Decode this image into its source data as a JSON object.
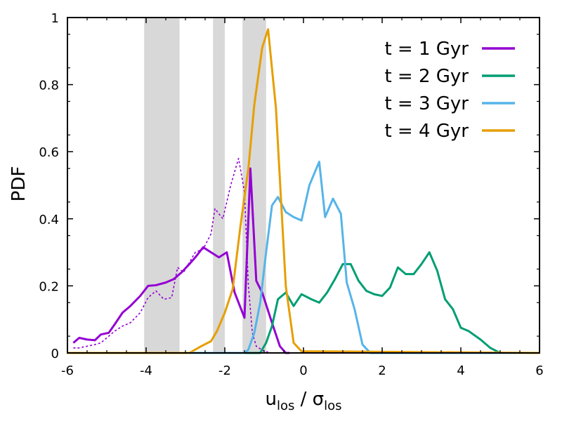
{
  "chart_data": {
    "type": "line",
    "xlabel": "u_los / σ_los",
    "xlabel_parts": {
      "u": "u",
      "u_sub": "los",
      "sep": " / ",
      "sigma": "σ",
      "sigma_sub": "los"
    },
    "ylabel": "PDF",
    "xlim": [
      -6,
      6
    ],
    "ylim": [
      0,
      1
    ],
    "x_ticks": [
      -6,
      -4,
      -2,
      0,
      2,
      4,
      6
    ],
    "y_ticks": [
      0,
      0.2,
      0.4,
      0.6,
      0.8,
      1
    ],
    "x_tick_labels": [
      "-6",
      "-4",
      "-2",
      "0",
      "2",
      "4",
      "6"
    ],
    "y_tick_labels": [
      "0",
      "0.2",
      "0.4",
      "0.6",
      "0.8",
      "1"
    ],
    "legend_position": "top-right",
    "shaded_bands": [
      {
        "x0": -4.05,
        "x1": -3.15
      },
      {
        "x0": -2.3,
        "x1": -2.0
      },
      {
        "x0": -1.55,
        "x1": -0.95
      }
    ],
    "series": [
      {
        "name": "t = 1 Gyr",
        "color": "#9400d3",
        "style": "solid",
        "x": [
          -5.85,
          -5.7,
          -5.5,
          -5.3,
          -5.15,
          -4.95,
          -4.8,
          -4.6,
          -4.4,
          -4.15,
          -3.95,
          -3.75,
          -3.5,
          -3.3,
          -3.1,
          -2.9,
          -2.75,
          -2.55,
          -2.35,
          -2.15,
          -1.95,
          -1.75,
          -1.5,
          -1.35,
          -1.2,
          -1.05,
          -0.8,
          -0.6,
          -0.45,
          -0.35
        ],
        "values": [
          0.03,
          0.045,
          0.04,
          0.038,
          0.055,
          0.06,
          0.085,
          0.12,
          0.14,
          0.17,
          0.2,
          0.202,
          0.21,
          0.22,
          0.24,
          0.265,
          0.285,
          0.315,
          0.3,
          0.285,
          0.3,
          0.18,
          0.105,
          0.55,
          0.215,
          0.18,
          0.09,
          0.02,
          0.0,
          0.0
        ]
      },
      {
        "name": "t = 1 Gyr (dotted)",
        "color": "#9400d3",
        "style": "dotted",
        "x": [
          -5.85,
          -5.7,
          -5.5,
          -5.3,
          -5.15,
          -4.95,
          -4.8,
          -4.6,
          -4.4,
          -4.15,
          -3.95,
          -3.75,
          -3.55,
          -3.35,
          -3.2,
          -3.05,
          -2.9,
          -2.75,
          -2.55,
          -2.35,
          -2.25,
          -2.05,
          -1.85,
          -1.65,
          -1.5,
          -1.4,
          -1.3,
          -1.2,
          -1.0,
          -0.8,
          -0.6,
          -0.45
        ],
        "values": [
          0.015,
          0.015,
          0.02,
          0.025,
          0.03,
          0.05,
          0.065,
          0.08,
          0.09,
          0.12,
          0.165,
          0.185,
          0.16,
          0.165,
          0.255,
          0.24,
          0.27,
          0.3,
          0.31,
          0.355,
          0.43,
          0.4,
          0.5,
          0.58,
          0.48,
          0.2,
          0.06,
          0.02,
          0.005,
          0.0,
          0.0,
          0.0
        ]
      },
      {
        "name": "t = 2 Gyr",
        "color": "#009e73",
        "style": "solid",
        "x": [
          -6.0,
          -1.1,
          -0.95,
          -0.8,
          -0.65,
          -0.45,
          -0.25,
          -0.05,
          0.2,
          0.4,
          0.6,
          0.8,
          1.0,
          1.2,
          1.4,
          1.6,
          1.8,
          2.0,
          2.2,
          2.4,
          2.6,
          2.8,
          3.0,
          3.2,
          3.4,
          3.6,
          3.8,
          4.0,
          4.2,
          4.5,
          4.75,
          5.0,
          6.0
        ],
        "values": [
          0.0,
          0.0,
          0.03,
          0.08,
          0.16,
          0.18,
          0.14,
          0.175,
          0.16,
          0.15,
          0.18,
          0.22,
          0.265,
          0.265,
          0.215,
          0.185,
          0.175,
          0.17,
          0.195,
          0.255,
          0.235,
          0.235,
          0.265,
          0.3,
          0.245,
          0.16,
          0.13,
          0.075,
          0.065,
          0.04,
          0.015,
          0.0,
          0.0
        ]
      },
      {
        "name": "t = 3 Gyr",
        "color": "#56b4e9",
        "style": "solid",
        "x": [
          -6.0,
          -1.5,
          -1.4,
          -1.25,
          -1.1,
          -0.95,
          -0.8,
          -0.65,
          -0.45,
          -0.25,
          -0.05,
          0.15,
          0.4,
          0.55,
          0.75,
          0.95,
          1.1,
          1.3,
          1.5,
          1.7,
          1.85,
          2.0,
          6.0
        ],
        "values": [
          0.0,
          0.0,
          0.01,
          0.06,
          0.15,
          0.3,
          0.44,
          0.465,
          0.42,
          0.405,
          0.395,
          0.5,
          0.57,
          0.405,
          0.46,
          0.415,
          0.21,
          0.13,
          0.025,
          0.0,
          0.0,
          0.0,
          0.0
        ]
      },
      {
        "name": "t = 4 Gyr",
        "color": "#e69f00",
        "style": "solid",
        "x": [
          -6.0,
          -2.9,
          -2.6,
          -2.35,
          -2.2,
          -2.0,
          -1.8,
          -1.6,
          -1.4,
          -1.25,
          -1.05,
          -0.9,
          -0.7,
          -0.45,
          -0.25,
          -0.05,
          6.0
        ],
        "values": [
          0.0,
          0.0,
          0.02,
          0.035,
          0.065,
          0.12,
          0.19,
          0.38,
          0.55,
          0.74,
          0.91,
          0.965,
          0.73,
          0.2,
          0.03,
          0.005,
          0.0
        ]
      },
      {
        "name": "baseline",
        "color": "#000000",
        "style": "solid",
        "x": [
          -6.0,
          -0.3,
          0.0,
          6.0
        ],
        "values": [
          0.0,
          0.0,
          0.0,
          0.0
        ]
      }
    ],
    "legend": [
      {
        "label": "t = 1 Gyr",
        "color": "#9400d3"
      },
      {
        "label": "t = 2 Gyr",
        "color": "#009e73"
      },
      {
        "label": "t = 3 Gyr",
        "color": "#56b4e9"
      },
      {
        "label": "t = 4 Gyr",
        "color": "#e69f00"
      }
    ],
    "band_color": "#d8d8d8"
  }
}
